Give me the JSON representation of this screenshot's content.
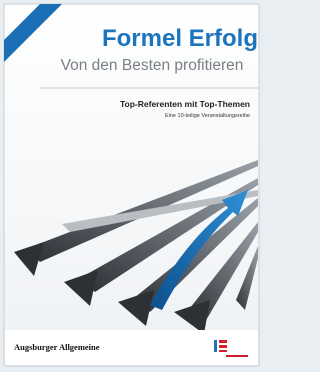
{
  "header": {
    "title": "Formel Erfolg",
    "subtitle": "Von den Besten profitieren"
  },
  "tagline": {
    "title": "Top-Referenten mit Top-Themen",
    "subtitle": "Eine 10-teilige Veranstaltungsreihe"
  },
  "footer": {
    "publisher": "Augsburger Allgemeine"
  }
}
